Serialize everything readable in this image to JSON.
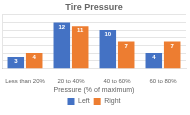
{
  "chart_data": {
    "type": "bar",
    "title": "Tire Pressure",
    "xlabel": "Pressure (% of maximum)",
    "categories": [
      "Less than 20%",
      "20 to 40%",
      "40 to 60%",
      "60 to 80%"
    ],
    "series": [
      {
        "name": "Left",
        "color": "#4472C4",
        "values": [
          3,
          12,
          10,
          4
        ]
      },
      {
        "name": "Right",
        "color": "#ED7D31",
        "values": [
          4,
          11,
          7,
          7
        ]
      }
    ],
    "ylim": [
      0,
      14
    ],
    "yticks": [
      2,
      4,
      6,
      8,
      10,
      12,
      14
    ],
    "grid": true,
    "data_labels": true,
    "tick_labels": "x",
    "legend": "bottom"
  }
}
